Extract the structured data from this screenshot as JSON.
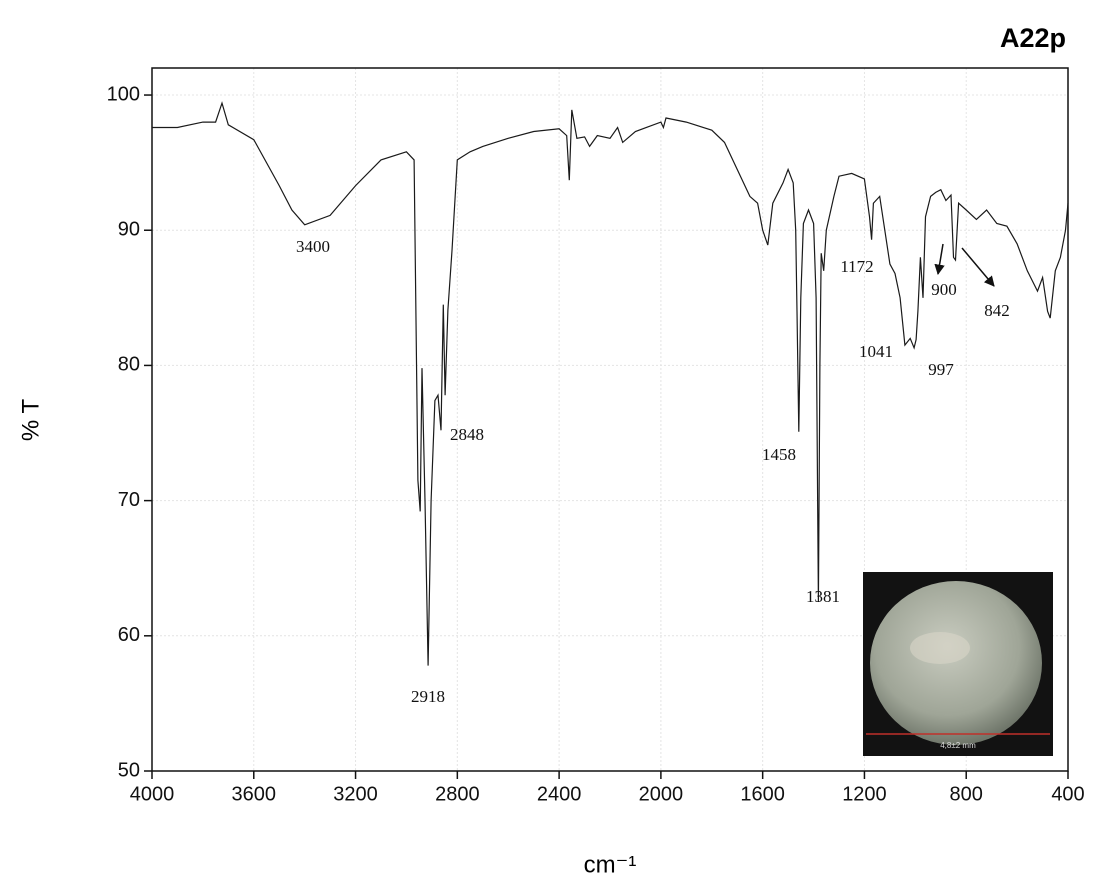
{
  "chart_data": {
    "type": "line",
    "title": "A22p",
    "x_label": "cm⁻¹",
    "y_label": "% T",
    "xlim": [
      4000,
      400
    ],
    "ylim": [
      50,
      102
    ],
    "xticks": [
      4000,
      3600,
      3200,
      2800,
      2400,
      2000,
      1600,
      1200,
      800,
      400
    ],
    "yticks": [
      50,
      60,
      70,
      80,
      90,
      100
    ],
    "grid": true,
    "series": [
      {
        "name": "A22p",
        "color": "#1a1a1a",
        "x": [
          4000,
          3900,
          3800,
          3750,
          3725,
          3700,
          3600,
          3500,
          3450,
          3400,
          3300,
          3200,
          3100,
          3000,
          2970,
          2955,
          2946,
          2939,
          2927,
          2915,
          2903,
          2888,
          2876,
          2864,
          2855,
          2848,
          2837,
          2821,
          2800,
          2750,
          2700,
          2600,
          2500,
          2400,
          2370,
          2360,
          2350,
          2330,
          2300,
          2280,
          2250,
          2200,
          2170,
          2150,
          2100,
          2000,
          1990,
          1980,
          1900,
          1800,
          1750,
          1700,
          1650,
          1620,
          1600,
          1580,
          1560,
          1520,
          1500,
          1480,
          1470,
          1465,
          1458,
          1450,
          1440,
          1420,
          1400,
          1390,
          1381,
          1375,
          1370,
          1360,
          1350,
          1320,
          1300,
          1250,
          1200,
          1180,
          1172,
          1165,
          1140,
          1120,
          1100,
          1080,
          1060,
          1041,
          1020,
          1005,
          997,
          990,
          980,
          970,
          960,
          940,
          920,
          900,
          880,
          860,
          850,
          842,
          830,
          800,
          760,
          720,
          680,
          640,
          600,
          560,
          520,
          500,
          480,
          470,
          450,
          430,
          410,
          400
        ],
        "values": [
          97.6,
          97.6,
          98.0,
          98.0,
          99.4,
          97.8,
          96.7,
          93.3,
          91.5,
          90.4,
          91.1,
          93.3,
          95.2,
          95.8,
          95.2,
          71.5,
          69.2,
          79.8,
          70.0,
          57.8,
          70.0,
          77.4,
          77.8,
          75.2,
          84.5,
          77.8,
          84.1,
          88.5,
          95.2,
          95.8,
          96.2,
          96.8,
          97.3,
          97.5,
          97.0,
          93.7,
          98.9,
          96.8,
          96.9,
          96.2,
          97.0,
          96.8,
          97.6,
          96.5,
          97.3,
          98.0,
          97.6,
          98.3,
          98.0,
          97.4,
          96.5,
          94.5,
          92.5,
          92.0,
          90.0,
          88.9,
          92.0,
          93.5,
          94.5,
          93.5,
          90.0,
          84.0,
          75.1,
          85.0,
          90.5,
          91.5,
          90.5,
          85.0,
          62.5,
          80.0,
          88.3,
          87.0,
          90.0,
          92.5,
          94.0,
          94.2,
          93.8,
          91.0,
          89.3,
          92.0,
          92.5,
          90.0,
          87.5,
          86.8,
          85.0,
          81.5,
          82.0,
          81.3,
          81.9,
          84.0,
          88.0,
          85.0,
          91.0,
          92.5,
          92.8,
          93.0,
          92.2,
          92.6,
          88.0,
          87.8,
          92.0,
          91.5,
          90.8,
          91.5,
          90.5,
          90.3,
          89.0,
          87.0,
          85.5,
          86.5,
          84.0,
          83.5,
          87.0,
          88.0,
          90.0,
          92.0
        ]
      }
    ],
    "annotations": [
      "3400",
      "2918",
      "2848",
      "1458",
      "1381",
      "1172",
      "1041",
      "997",
      "900",
      "842"
    ],
    "inset_caption": "4,8±2 mm"
  }
}
